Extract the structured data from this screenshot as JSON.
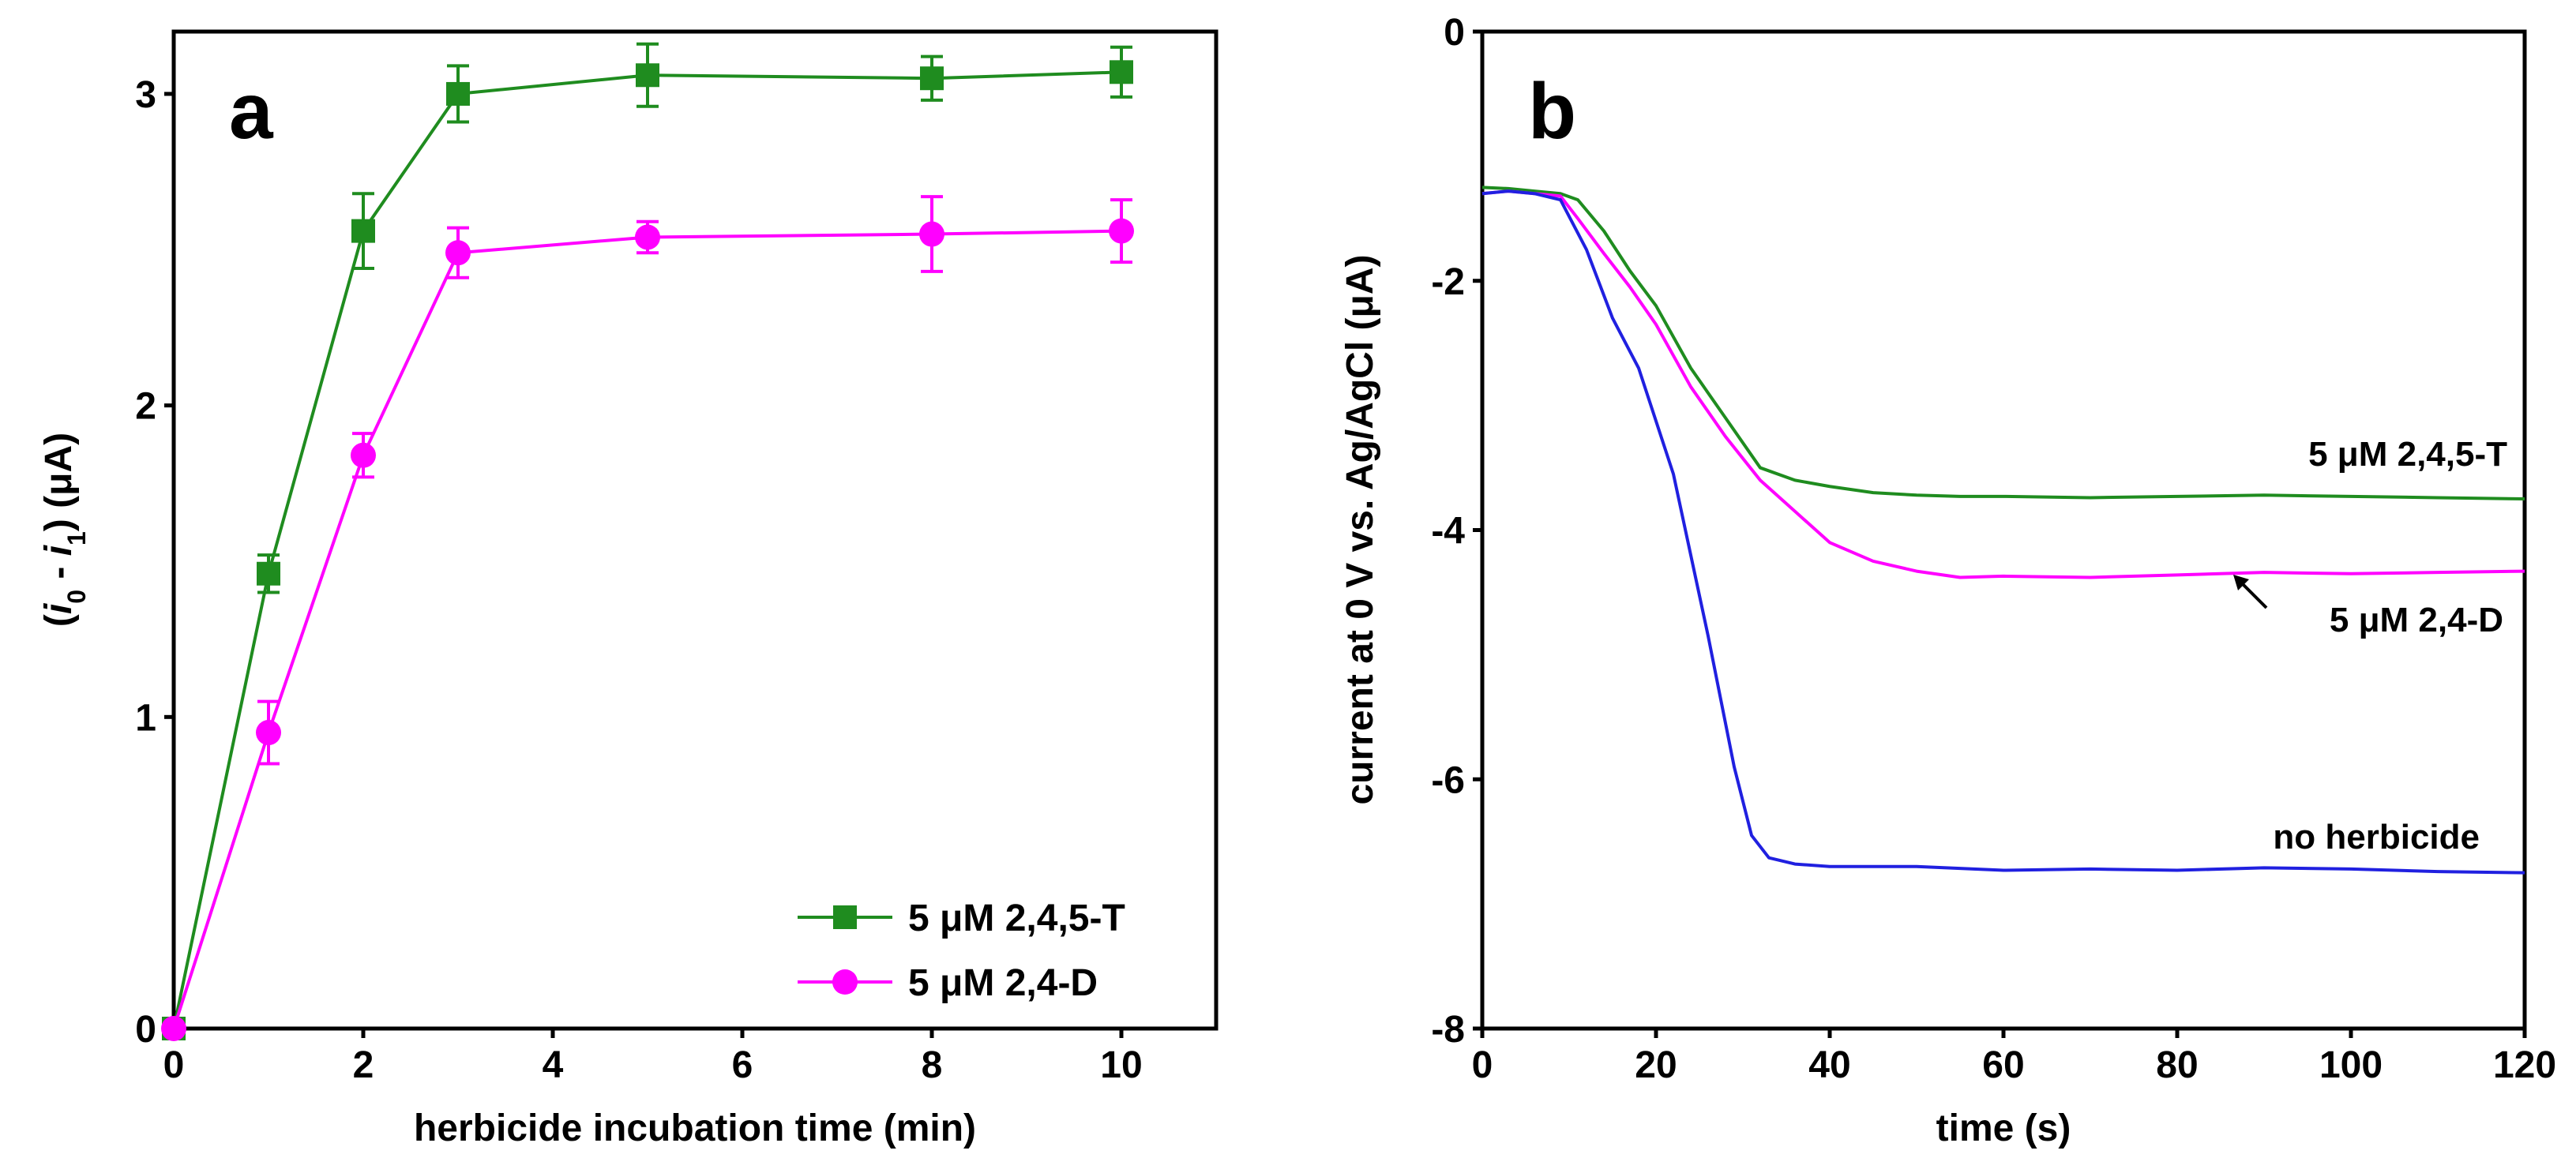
{
  "chart_data": [
    {
      "panel": "a",
      "type": "line",
      "xlabel": "herbicide incubation time (min)",
      "ylabel_parts": [
        "(",
        "i",
        "0",
        " - ",
        "i",
        "1",
        ") (μA)"
      ],
      "xlim": [
        0,
        11
      ],
      "ylim": [
        0,
        3.2
      ],
      "xticks": [
        0,
        2,
        4,
        6,
        8,
        10
      ],
      "yticks": [
        0,
        1,
        2,
        3
      ],
      "grid": false,
      "legend_position": "bottom-right",
      "series": [
        {
          "name": "5 μM 2,4,5-T",
          "color": "#1f8c1f",
          "marker": "square",
          "x": [
            0,
            1,
            2,
            3,
            5,
            8,
            10
          ],
          "y": [
            0,
            1.46,
            2.56,
            3.0,
            3.06,
            3.05,
            3.07
          ],
          "err": [
            0,
            0.06,
            0.12,
            0.09,
            0.1,
            0.07,
            0.08
          ]
        },
        {
          "name": "5 μM 2,4-D",
          "color": "#ff00ff",
          "marker": "circle",
          "x": [
            0,
            1,
            2,
            3,
            5,
            8,
            10
          ],
          "y": [
            0,
            0.95,
            1.84,
            2.49,
            2.54,
            2.55,
            2.56
          ],
          "err": [
            0,
            0.1,
            0.07,
            0.08,
            0.05,
            0.12,
            0.1
          ]
        }
      ]
    },
    {
      "panel": "b",
      "type": "line",
      "xlabel": "time (s)",
      "ylabel": "current at 0 V vs. Ag/AgCl (μA)",
      "xlim": [
        0,
        120
      ],
      "ylim": [
        -8,
        0
      ],
      "xticks": [
        0,
        20,
        40,
        60,
        80,
        100,
        120
      ],
      "yticks": [
        0,
        -2,
        -4,
        -6,
        -8
      ],
      "grid": false,
      "series": [
        {
          "name": "5 μM 2,4,5-T",
          "color": "#1f8c1f",
          "x": [
            0,
            3,
            6,
            9,
            11,
            14,
            17,
            20,
            24,
            28,
            32,
            36,
            40,
            45,
            50,
            55,
            60,
            70,
            80,
            90,
            100,
            110,
            120
          ],
          "y": [
            -1.25,
            -1.26,
            -1.28,
            -1.3,
            -1.35,
            -1.6,
            -1.92,
            -2.2,
            -2.7,
            -3.1,
            -3.5,
            -3.6,
            -3.65,
            -3.7,
            -3.72,
            -3.73,
            -3.73,
            -3.74,
            -3.73,
            -3.72,
            -3.73,
            -3.74,
            -3.75
          ]
        },
        {
          "name": "5 μM 2,4-D",
          "color": "#ff00ff",
          "x": [
            0,
            3,
            6,
            9,
            11,
            14,
            17,
            20,
            24,
            28,
            32,
            36,
            40,
            45,
            50,
            55,
            60,
            70,
            80,
            90,
            100,
            110,
            120
          ],
          "y": [
            -1.3,
            -1.28,
            -1.3,
            -1.32,
            -1.5,
            -1.78,
            -2.05,
            -2.35,
            -2.85,
            -3.25,
            -3.6,
            -3.85,
            -4.1,
            -4.25,
            -4.33,
            -4.38,
            -4.37,
            -4.38,
            -4.36,
            -4.34,
            -4.35,
            -4.34,
            -4.33
          ]
        },
        {
          "name": "no herbicide",
          "color": "#2020e0",
          "x": [
            0,
            3,
            6,
            9,
            12,
            15,
            18,
            22,
            26,
            29,
            31,
            33,
            36,
            40,
            45,
            50,
            60,
            70,
            80,
            90,
            100,
            110,
            120
          ],
          "y": [
            -1.3,
            -1.28,
            -1.3,
            -1.35,
            -1.75,
            -2.3,
            -2.7,
            -3.55,
            -4.85,
            -5.9,
            -6.45,
            -6.63,
            -6.68,
            -6.7,
            -6.7,
            -6.7,
            -6.73,
            -6.72,
            -6.73,
            -6.71,
            -6.72,
            -6.74,
            -6.75
          ]
        }
      ],
      "annotations": [
        {
          "text": "5 μM 2,4,5-T",
          "for": "5 μM 2,4,5-T"
        },
        {
          "text": "5 μM 2,4-D",
          "for": "5 μM 2,4-D"
        },
        {
          "text": "no herbicide",
          "for": "no herbicide"
        }
      ]
    }
  ]
}
